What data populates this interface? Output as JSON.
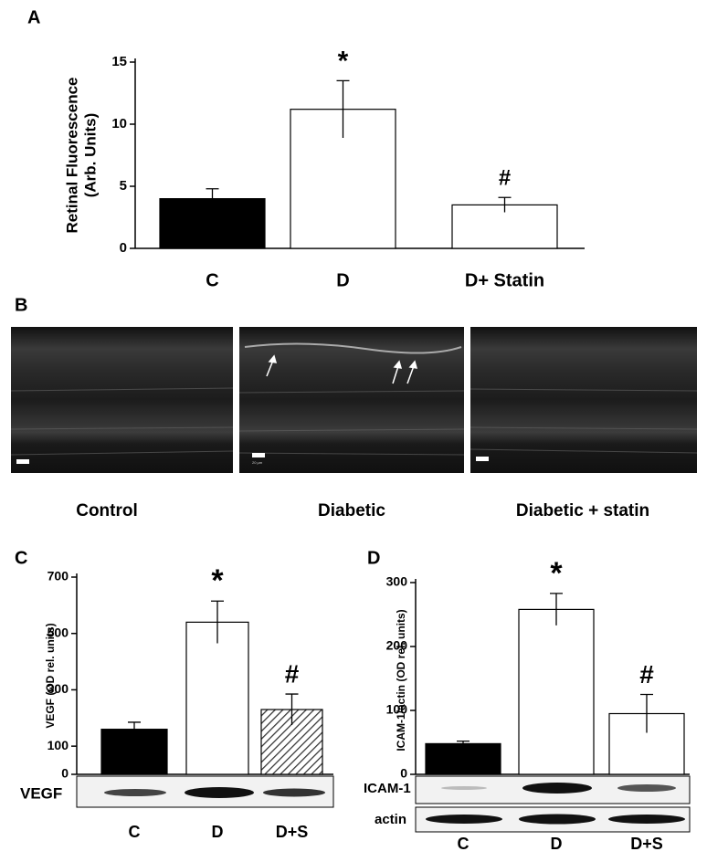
{
  "panels": [
    "A",
    "B",
    "C",
    "D"
  ],
  "chart_data": [
    {
      "type": "bar",
      "ylabel": [
        "Retinal Fluorescence",
        "(Arb.  Units)"
      ],
      "categories": [
        "C",
        "D",
        "D+ Statin"
      ],
      "values": [
        4.0,
        11.2,
        3.5
      ],
      "errors": [
        0.8,
        2.3,
        0.6
      ],
      "colors": [
        "#000000",
        "#ffffff",
        "#ffffff"
      ],
      "hatch": [
        false,
        false,
        false
      ],
      "annotations": [
        {
          "index": 1,
          "text": "*"
        },
        {
          "index": 2,
          "text": "#"
        }
      ],
      "ylim": [
        0,
        15
      ],
      "yticks": [
        0,
        5,
        10,
        15
      ]
    },
    {
      "type": "bar",
      "ylabel": [
        "VEGF (OD rel. units)"
      ],
      "categories": [
        "C",
        "D",
        "D+S"
      ],
      "values": [
        160,
        540,
        230
      ],
      "errors": [
        25,
        75,
        55
      ],
      "colors": [
        "#000000",
        "#ffffff",
        "#ffffff"
      ],
      "hatch": [
        false,
        false,
        true
      ],
      "annotations": [
        {
          "index": 1,
          "text": "*"
        },
        {
          "index": 2,
          "text": "#"
        }
      ],
      "ylim": [
        0,
        700
      ],
      "yticks": [
        0,
        100,
        300,
        500,
        700
      ]
    },
    {
      "type": "bar",
      "ylabel": [
        "ICAM-1/actin (OD rel. units)"
      ],
      "categories": [
        "C",
        "D",
        "D+S"
      ],
      "values": [
        48,
        258,
        95
      ],
      "errors": [
        4,
        25,
        30
      ],
      "colors": [
        "#000000",
        "#ffffff",
        "#ffffff"
      ],
      "hatch": [
        false,
        false,
        false
      ],
      "annotations": [
        {
          "index": 1,
          "text": "*"
        },
        {
          "index": 2,
          "text": "#"
        }
      ],
      "ylim": [
        0,
        300
      ],
      "yticks": [
        0,
        100,
        200,
        300
      ]
    }
  ],
  "micrographs": {
    "labels": [
      "Control",
      "Diabetic",
      "Diabetic + statin"
    ],
    "scale_label": "20 µm"
  },
  "blots": {
    "C": [
      "VEGF"
    ],
    "D": [
      "ICAM-1",
      "actin"
    ]
  }
}
